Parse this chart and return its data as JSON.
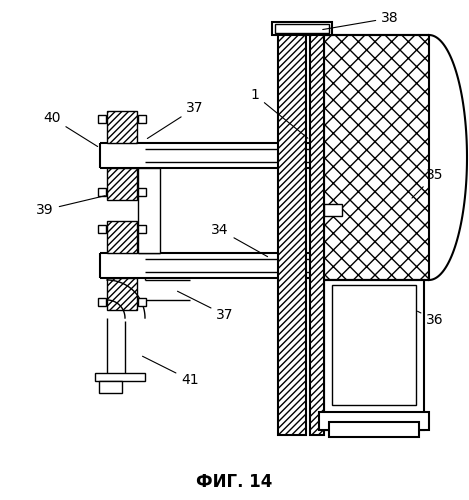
{
  "title": "ФИГ. 14",
  "title_fontsize": 12,
  "bg_color": "#ffffff",
  "fig_width": 4.69,
  "fig_height": 5.0,
  "dpi": 100
}
